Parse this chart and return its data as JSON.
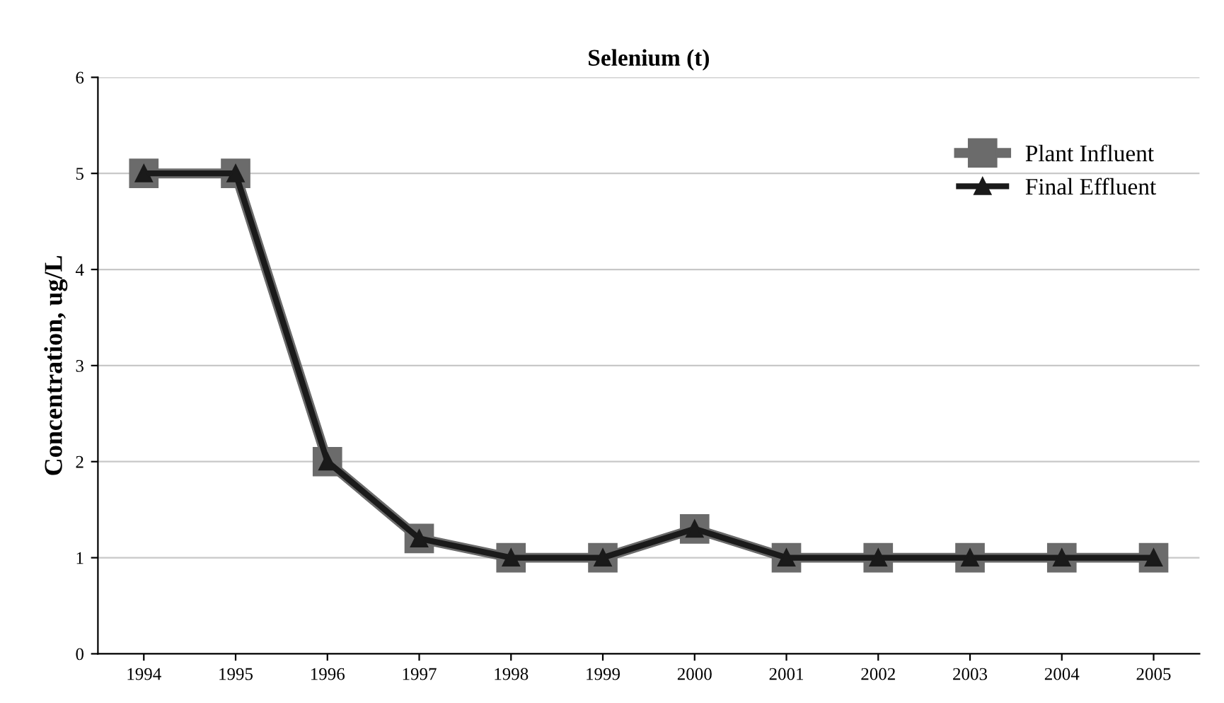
{
  "chart_data": {
    "type": "line",
    "title": "Selenium (t)",
    "ylabel": "Concentration, ug/L",
    "categories": [
      "1994",
      "1995",
      "1996",
      "1997",
      "1998",
      "1999",
      "2000",
      "2001",
      "2002",
      "2003",
      "2004",
      "2005"
    ],
    "series": [
      {
        "name": "Plant Influent",
        "color": "#6b6b6b",
        "marker": "square",
        "values": [
          5,
          5,
          2,
          1.2,
          1,
          1,
          1.3,
          1,
          1,
          1,
          1,
          1
        ]
      },
      {
        "name": "Final Effluent",
        "color": "#1a1a1a",
        "marker": "triangle",
        "values": [
          5,
          5,
          2,
          1.2,
          1,
          1,
          1.3,
          1,
          1,
          1,
          1,
          1
        ]
      }
    ],
    "ylim": [
      0,
      6
    ],
    "yticks": [
      0,
      1,
      2,
      3,
      4,
      5,
      6
    ],
    "grid": "y",
    "legend": "top right",
    "line_style": "solid"
  }
}
